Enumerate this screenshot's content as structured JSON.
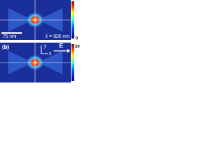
{
  "panels": [
    {
      "scale_bar": "75 nm",
      "wavelength": "λ = 820 nm",
      "colorbar_min": "0"
    },
    {
      "label": "(b)",
      "axis_y": "y",
      "axis_x": "x",
      "field": "E",
      "colorbar_max": "20"
    }
  ]
}
